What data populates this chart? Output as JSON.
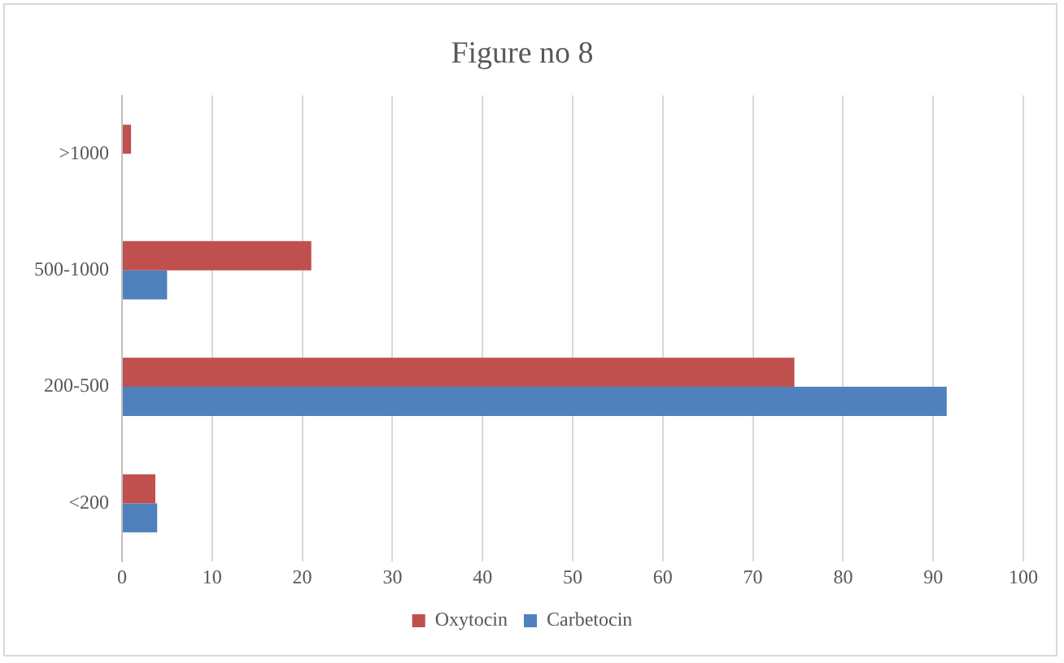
{
  "chart_data": {
    "type": "bar",
    "title": "Figure no 8",
    "orientation": "horizontal",
    "categories": [
      ">1000",
      "500-1000",
      "200-500",
      "<200"
    ],
    "series": [
      {
        "name": "Oxytocin",
        "color": "#c0504d",
        "values": [
          1,
          21,
          74.6,
          3.7
        ]
      },
      {
        "name": "Carbetocin",
        "color": "#4f81bd",
        "values": [
          0,
          5,
          91.5,
          3.9
        ]
      }
    ],
    "xlim": [
      0,
      100
    ],
    "xticks": [
      0,
      10,
      20,
      30,
      40,
      50,
      60,
      70,
      80,
      90,
      100
    ],
    "grid": "x",
    "legend": "bottom"
  }
}
